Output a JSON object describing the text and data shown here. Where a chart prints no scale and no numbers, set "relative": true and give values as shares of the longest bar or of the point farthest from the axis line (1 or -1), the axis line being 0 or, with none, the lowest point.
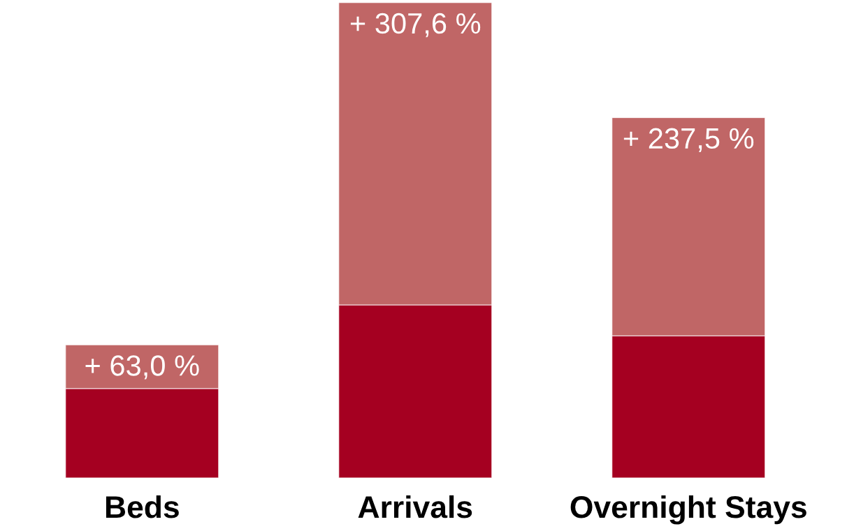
{
  "chart_data": {
    "type": "bar",
    "stacked": true,
    "relative": true,
    "categories": [
      "Beds",
      "Arrivals",
      "Overnight Stays"
    ],
    "series": [
      {
        "color": "#a50021",
        "values": [
          0.188,
          0.364,
          0.299
        ]
      },
      {
        "color": "#c06666",
        "values": [
          0.092,
          0.636,
          0.459
        ]
      }
    ],
    "annotations": [
      {
        "text": "+ 63,0 %",
        "x": "Beds",
        "y": 0.28
      },
      {
        "text": "+ 307,6 %",
        "x": "Arrivals",
        "y": 1.0
      },
      {
        "text": "+ 237,5 %",
        "x": "Overnight Stays",
        "y": 0.758
      }
    ]
  }
}
